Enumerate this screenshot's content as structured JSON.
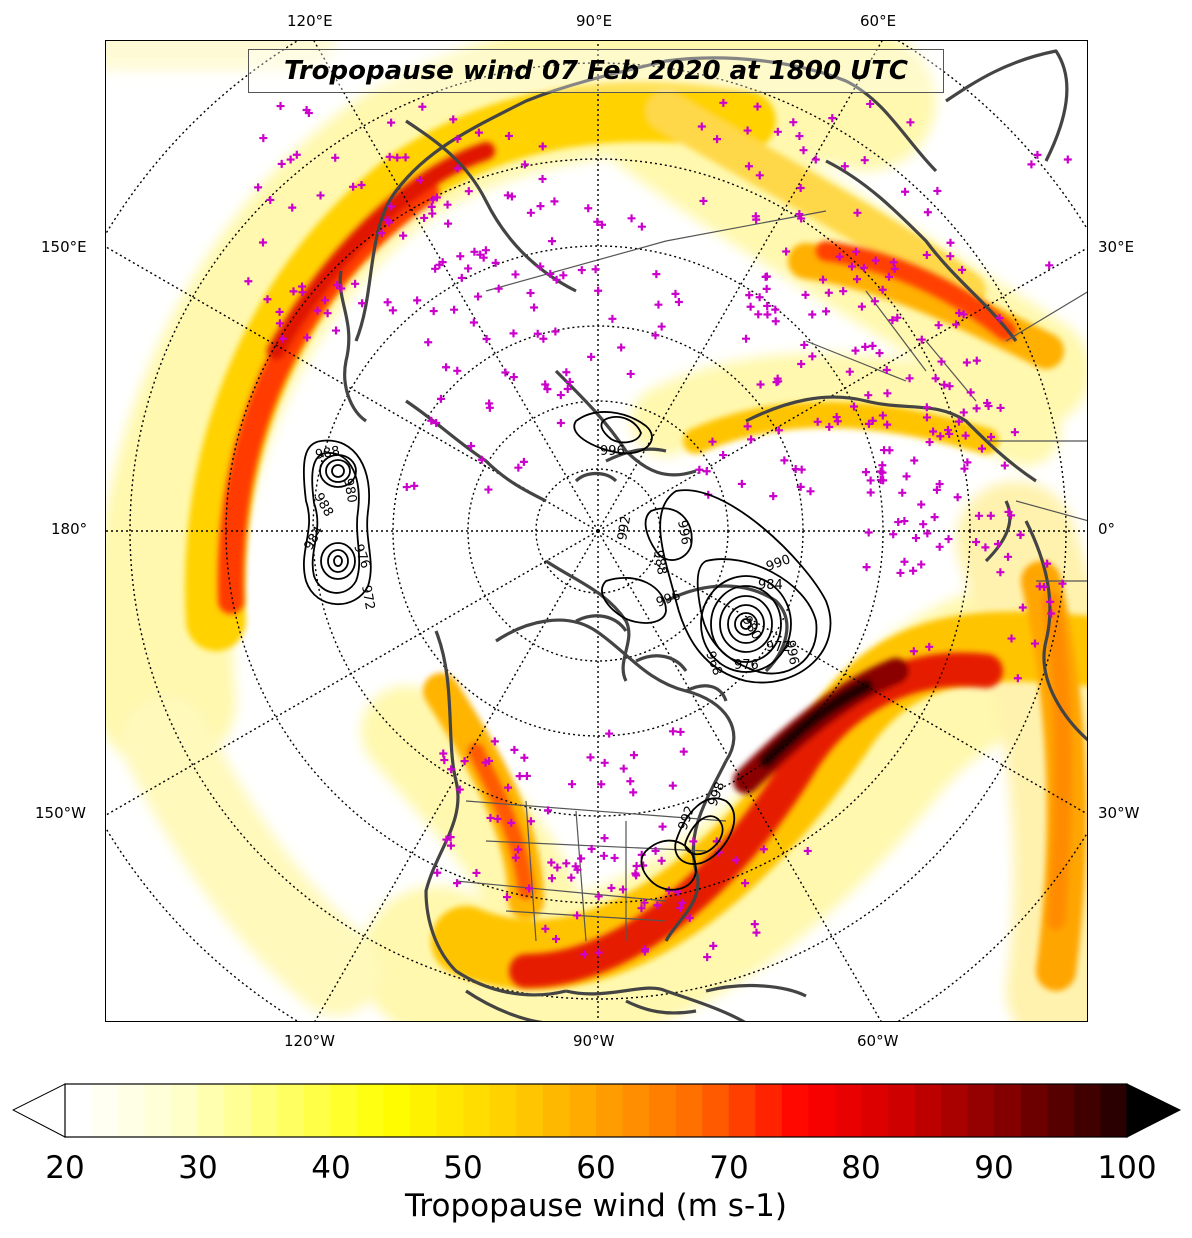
{
  "title": "Tropopause wind 07 Feb 2020 at 1800 UTC",
  "top_labels": [
    "120°E",
    "90°E",
    "60°E"
  ],
  "bottom_labels": [
    "120°W",
    "90°W",
    "60°W"
  ],
  "left_labels": [
    "150°E",
    "180°",
    "150°W"
  ],
  "right_labels": [
    "30°E",
    "0°",
    "30°W"
  ],
  "colorbar": {
    "label": "Tropopause wind (m s-1)",
    "ticks": [
      "20",
      "30",
      "40",
      "50",
      "60",
      "70",
      "80",
      "90",
      "100"
    ],
    "min": 20,
    "max": 100,
    "extend": "both"
  },
  "colors": {
    "wind_scale": [
      "#ffffff",
      "#ffffcc",
      "#ffff66",
      "#ffff00",
      "#ffd700",
      "#ffa500",
      "#ff6a00",
      "#ff0000",
      "#cc0000",
      "#800000",
      "#2b0000"
    ],
    "station_markers": "#cc00cc",
    "coastlines": "#444444",
    "pressure_contours": "#000000"
  },
  "contour_labels": [
    "996",
    "988",
    "980",
    "988",
    "984",
    "976",
    "972",
    "996",
    "992",
    "988",
    "984",
    "980",
    "976",
    "972",
    "968",
    "996",
    "990",
    "996",
    "998",
    "992"
  ]
}
